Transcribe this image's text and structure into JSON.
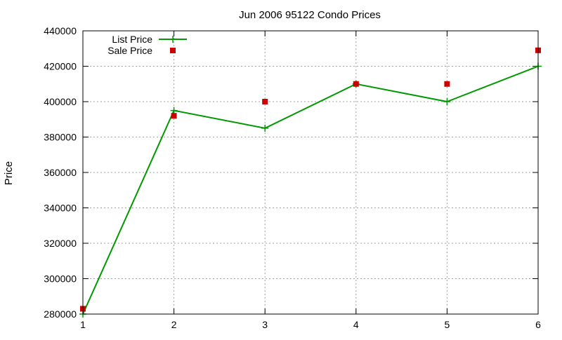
{
  "chart_data": {
    "type": "line",
    "title": "Jun 2006 95122 Condo Prices",
    "xlabel": "",
    "ylabel": "Price",
    "x": [
      1,
      2,
      3,
      4,
      5,
      6
    ],
    "xlim": [
      1,
      6
    ],
    "ylim": [
      280000,
      440000
    ],
    "xticks": [
      "1",
      "2",
      "3",
      "4",
      "5",
      "6"
    ],
    "yticks": [
      "280000",
      "300000",
      "320000",
      "340000",
      "360000",
      "380000",
      "400000",
      "420000",
      "440000"
    ],
    "grid": true,
    "legend_position": "top-left",
    "series": [
      {
        "name": "List Price",
        "type": "line",
        "marker": "plus",
        "color": "#009900",
        "values": [
          280000,
          395000,
          385000,
          410000,
          400000,
          420000
        ]
      },
      {
        "name": "Sale Price",
        "type": "scatter",
        "marker": "square",
        "color": "#cc0000",
        "values": [
          283000,
          392000,
          400000,
          410000,
          410000,
          429000
        ]
      }
    ]
  }
}
